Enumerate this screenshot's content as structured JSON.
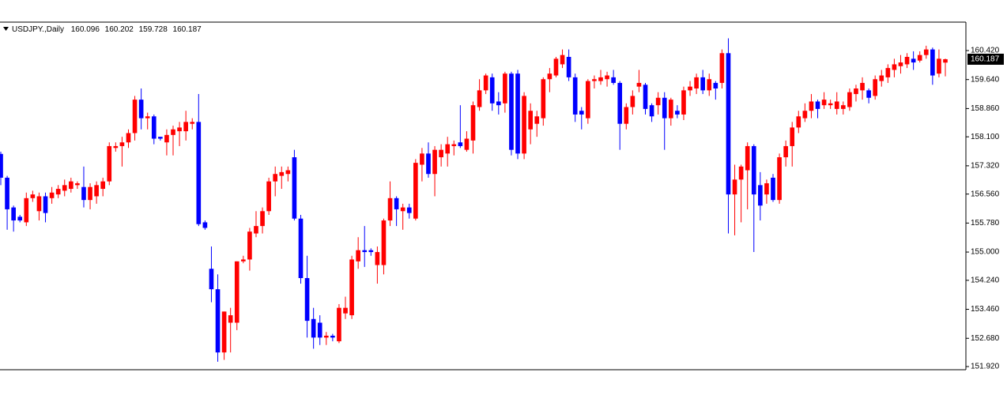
{
  "chart_data": {
    "type": "candlestick",
    "title": "USDJPY.,Daily",
    "up_color": "#ff0000",
    "down_color": "#0000ff",
    "ylim": [
      151.835,
      161.185
    ],
    "yticks": [
      {
        "value": 151.92,
        "label": "151.920"
      },
      {
        "value": 152.68,
        "label": "152.680"
      },
      {
        "value": 153.46,
        "label": "153.460"
      },
      {
        "value": 154.24,
        "label": "154.240"
      },
      {
        "value": 155.0,
        "label": "155.000"
      },
      {
        "value": 155.78,
        "label": "155.780"
      },
      {
        "value": 156.56,
        "label": "156.560"
      },
      {
        "value": 157.32,
        "label": "157.320"
      },
      {
        "value": 158.1,
        "label": "158.100"
      },
      {
        "value": 158.86,
        "label": "158.860"
      },
      {
        "value": 159.64,
        "label": "159.640"
      },
      {
        "value": 160.42,
        "label": "160.420"
      }
    ],
    "candles": [
      {
        "o": 157.64,
        "h": 157.7,
        "l": 156.8,
        "c": 157.0
      },
      {
        "o": 157.0,
        "h": 157.05,
        "l": 155.6,
        "c": 156.15
      },
      {
        "o": 156.2,
        "h": 156.25,
        "l": 155.55,
        "c": 155.85
      },
      {
        "o": 155.95,
        "h": 156.0,
        "l": 155.8,
        "c": 155.85
      },
      {
        "o": 155.8,
        "h": 156.6,
        "l": 155.7,
        "c": 156.45
      },
      {
        "o": 156.45,
        "h": 156.65,
        "l": 156.35,
        "c": 156.55
      },
      {
        "o": 156.1,
        "h": 156.6,
        "l": 155.85,
        "c": 156.5
      },
      {
        "o": 156.5,
        "h": 156.6,
        "l": 155.8,
        "c": 156.05
      },
      {
        "o": 156.45,
        "h": 156.75,
        "l": 156.3,
        "c": 156.6
      },
      {
        "o": 156.55,
        "h": 156.8,
        "l": 156.45,
        "c": 156.7
      },
      {
        "o": 156.65,
        "h": 156.95,
        "l": 156.5,
        "c": 156.8
      },
      {
        "o": 156.7,
        "h": 157.0,
        "l": 156.6,
        "c": 156.9
      },
      {
        "o": 156.8,
        "h": 156.9,
        "l": 156.7,
        "c": 156.85
      },
      {
        "o": 156.75,
        "h": 157.3,
        "l": 156.2,
        "c": 156.4
      },
      {
        "o": 156.4,
        "h": 156.85,
        "l": 156.15,
        "c": 156.75
      },
      {
        "o": 156.5,
        "h": 156.9,
        "l": 156.3,
        "c": 156.8
      },
      {
        "o": 156.7,
        "h": 157.0,
        "l": 156.5,
        "c": 156.9
      },
      {
        "o": 156.9,
        "h": 157.95,
        "l": 156.8,
        "c": 157.85
      },
      {
        "o": 157.8,
        "h": 157.95,
        "l": 157.7,
        "c": 157.85
      },
      {
        "o": 157.85,
        "h": 158.1,
        "l": 157.3,
        "c": 157.95
      },
      {
        "o": 157.95,
        "h": 158.3,
        "l": 157.8,
        "c": 158.2
      },
      {
        "o": 158.2,
        "h": 159.2,
        "l": 158.0,
        "c": 159.1
      },
      {
        "o": 159.1,
        "h": 159.4,
        "l": 158.3,
        "c": 158.6
      },
      {
        "o": 158.6,
        "h": 158.75,
        "l": 158.3,
        "c": 158.65
      },
      {
        "o": 158.65,
        "h": 158.7,
        "l": 157.9,
        "c": 158.05
      },
      {
        "o": 158.1,
        "h": 158.1,
        "l": 158.0,
        "c": 158.05
      },
      {
        "o": 157.95,
        "h": 158.3,
        "l": 157.6,
        "c": 158.15
      },
      {
        "o": 158.15,
        "h": 158.4,
        "l": 157.6,
        "c": 158.3
      },
      {
        "o": 158.25,
        "h": 158.5,
        "l": 157.85,
        "c": 158.35
      },
      {
        "o": 158.25,
        "h": 158.8,
        "l": 158.0,
        "c": 158.5
      },
      {
        "o": 158.45,
        "h": 158.6,
        "l": 158.3,
        "c": 158.5
      },
      {
        "o": 158.5,
        "h": 159.25,
        "l": 155.7,
        "c": 155.75
      },
      {
        "o": 155.8,
        "h": 155.85,
        "l": 155.6,
        "c": 155.65
      },
      {
        "o": 154.55,
        "h": 155.15,
        "l": 153.65,
        "c": 154.0
      },
      {
        "o": 154.0,
        "h": 154.4,
        "l": 152.05,
        "c": 152.3
      },
      {
        "o": 152.3,
        "h": 153.4,
        "l": 152.1,
        "c": 153.4
      },
      {
        "o": 153.1,
        "h": 153.5,
        "l": 152.3,
        "c": 153.3
      },
      {
        "o": 153.1,
        "h": 154.75,
        "l": 152.9,
        "c": 154.75
      },
      {
        "o": 154.75,
        "h": 154.9,
        "l": 154.7,
        "c": 154.8
      },
      {
        "o": 154.8,
        "h": 155.65,
        "l": 154.5,
        "c": 155.55
      },
      {
        "o": 155.5,
        "h": 156.1,
        "l": 155.4,
        "c": 155.7
      },
      {
        "o": 155.7,
        "h": 156.2,
        "l": 155.5,
        "c": 156.1
      },
      {
        "o": 156.1,
        "h": 157.0,
        "l": 156.0,
        "c": 156.9
      },
      {
        "o": 156.9,
        "h": 157.3,
        "l": 156.5,
        "c": 157.1
      },
      {
        "o": 157.05,
        "h": 157.3,
        "l": 156.7,
        "c": 157.15
      },
      {
        "o": 157.1,
        "h": 157.3,
        "l": 156.9,
        "c": 157.2
      },
      {
        "o": 157.55,
        "h": 157.75,
        "l": 155.85,
        "c": 155.9
      },
      {
        "o": 155.9,
        "h": 156.0,
        "l": 154.15,
        "c": 154.3
      },
      {
        "o": 154.3,
        "h": 154.9,
        "l": 152.7,
        "c": 153.15
      },
      {
        "o": 153.2,
        "h": 153.5,
        "l": 152.4,
        "c": 152.7
      },
      {
        "o": 153.1,
        "h": 153.3,
        "l": 152.5,
        "c": 152.7
      },
      {
        "o": 152.7,
        "h": 152.85,
        "l": 152.5,
        "c": 152.75
      },
      {
        "o": 152.75,
        "h": 152.8,
        "l": 152.6,
        "c": 152.7
      },
      {
        "o": 152.6,
        "h": 153.6,
        "l": 152.55,
        "c": 153.5
      },
      {
        "o": 153.35,
        "h": 153.8,
        "l": 153.2,
        "c": 153.5
      },
      {
        "o": 153.3,
        "h": 154.9,
        "l": 153.2,
        "c": 154.8
      },
      {
        "o": 154.75,
        "h": 155.4,
        "l": 154.55,
        "c": 155.05
      },
      {
        "o": 155.05,
        "h": 155.7,
        "l": 154.6,
        "c": 155.0
      },
      {
        "o": 155.05,
        "h": 155.1,
        "l": 154.9,
        "c": 155.0
      },
      {
        "o": 154.65,
        "h": 155.15,
        "l": 154.15,
        "c": 155.0
      },
      {
        "o": 154.65,
        "h": 155.9,
        "l": 154.4,
        "c": 155.85
      },
      {
        "o": 155.85,
        "h": 156.9,
        "l": 155.7,
        "c": 156.45
      },
      {
        "o": 156.45,
        "h": 156.5,
        "l": 155.7,
        "c": 156.15
      },
      {
        "o": 156.1,
        "h": 156.3,
        "l": 155.6,
        "c": 156.2
      },
      {
        "o": 156.2,
        "h": 156.3,
        "l": 155.9,
        "c": 156.05
      },
      {
        "o": 155.9,
        "h": 157.5,
        "l": 155.85,
        "c": 157.4
      },
      {
        "o": 157.35,
        "h": 157.8,
        "l": 156.9,
        "c": 157.65
      },
      {
        "o": 157.65,
        "h": 157.95,
        "l": 157.0,
        "c": 157.1
      },
      {
        "o": 157.1,
        "h": 157.85,
        "l": 156.5,
        "c": 157.75
      },
      {
        "o": 157.55,
        "h": 157.9,
        "l": 157.3,
        "c": 157.75
      },
      {
        "o": 157.65,
        "h": 158.1,
        "l": 157.3,
        "c": 157.9
      },
      {
        "o": 157.85,
        "h": 158.0,
        "l": 157.6,
        "c": 157.9
      },
      {
        "o": 157.95,
        "h": 158.95,
        "l": 157.8,
        "c": 157.85
      },
      {
        "o": 157.75,
        "h": 158.25,
        "l": 157.7,
        "c": 158.05
      },
      {
        "o": 158.0,
        "h": 159.05,
        "l": 157.65,
        "c": 158.95
      },
      {
        "o": 158.9,
        "h": 159.65,
        "l": 158.8,
        "c": 159.35
      },
      {
        "o": 159.35,
        "h": 159.8,
        "l": 159.25,
        "c": 159.75
      },
      {
        "o": 159.7,
        "h": 159.8,
        "l": 158.8,
        "c": 159.0
      },
      {
        "o": 159.05,
        "h": 159.3,
        "l": 158.7,
        "c": 158.95
      },
      {
        "o": 159.0,
        "h": 159.85,
        "l": 158.75,
        "c": 159.8
      },
      {
        "o": 159.8,
        "h": 159.85,
        "l": 157.6,
        "c": 157.75
      },
      {
        "o": 159.8,
        "h": 159.9,
        "l": 157.5,
        "c": 157.65
      },
      {
        "o": 157.65,
        "h": 159.3,
        "l": 157.5,
        "c": 159.2
      },
      {
        "o": 158.3,
        "h": 159.0,
        "l": 157.9,
        "c": 158.8
      },
      {
        "o": 158.45,
        "h": 158.8,
        "l": 158.1,
        "c": 158.65
      },
      {
        "o": 158.6,
        "h": 159.7,
        "l": 158.4,
        "c": 159.65
      },
      {
        "o": 159.65,
        "h": 159.95,
        "l": 159.3,
        "c": 159.8
      },
      {
        "o": 159.75,
        "h": 160.25,
        "l": 159.7,
        "c": 160.2
      },
      {
        "o": 160.05,
        "h": 160.45,
        "l": 159.95,
        "c": 160.3
      },
      {
        "o": 160.25,
        "h": 160.45,
        "l": 159.6,
        "c": 159.7
      },
      {
        "o": 159.7,
        "h": 159.8,
        "l": 158.5,
        "c": 158.7
      },
      {
        "o": 158.8,
        "h": 158.9,
        "l": 158.3,
        "c": 158.7
      },
      {
        "o": 158.6,
        "h": 159.65,
        "l": 158.45,
        "c": 159.6
      },
      {
        "o": 159.6,
        "h": 159.75,
        "l": 159.4,
        "c": 159.65
      },
      {
        "o": 159.6,
        "h": 159.9,
        "l": 159.5,
        "c": 159.7
      },
      {
        "o": 159.65,
        "h": 159.85,
        "l": 159.45,
        "c": 159.75
      },
      {
        "o": 159.7,
        "h": 159.9,
        "l": 159.5,
        "c": 159.55
      },
      {
        "o": 159.55,
        "h": 159.6,
        "l": 157.75,
        "c": 158.45
      },
      {
        "o": 158.45,
        "h": 159.0,
        "l": 158.3,
        "c": 158.9
      },
      {
        "o": 158.9,
        "h": 159.35,
        "l": 158.7,
        "c": 159.2
      },
      {
        "o": 159.45,
        "h": 159.9,
        "l": 159.3,
        "c": 159.55
      },
      {
        "o": 159.5,
        "h": 159.55,
        "l": 158.7,
        "c": 158.85
      },
      {
        "o": 158.95,
        "h": 159.0,
        "l": 158.5,
        "c": 158.65
      },
      {
        "o": 158.95,
        "h": 159.3,
        "l": 158.7,
        "c": 159.15
      },
      {
        "o": 159.15,
        "h": 159.3,
        "l": 157.75,
        "c": 158.6
      },
      {
        "o": 158.6,
        "h": 159.15,
        "l": 158.4,
        "c": 159.1
      },
      {
        "o": 158.8,
        "h": 158.95,
        "l": 158.6,
        "c": 158.7
      },
      {
        "o": 158.7,
        "h": 159.45,
        "l": 158.55,
        "c": 159.35
      },
      {
        "o": 159.35,
        "h": 159.6,
        "l": 159.2,
        "c": 159.45
      },
      {
        "o": 159.4,
        "h": 159.8,
        "l": 159.25,
        "c": 159.7
      },
      {
        "o": 159.7,
        "h": 159.9,
        "l": 159.25,
        "c": 159.35
      },
      {
        "o": 159.35,
        "h": 159.8,
        "l": 159.2,
        "c": 159.65
      },
      {
        "o": 159.55,
        "h": 159.6,
        "l": 159.1,
        "c": 159.4
      },
      {
        "o": 159.55,
        "h": 160.45,
        "l": 159.4,
        "c": 160.35
      },
      {
        "o": 160.35,
        "h": 160.75,
        "l": 155.5,
        "c": 156.55
      },
      {
        "o": 156.55,
        "h": 157.35,
        "l": 155.45,
        "c": 156.95
      },
      {
        "o": 156.95,
        "h": 157.35,
        "l": 155.8,
        "c": 157.3
      },
      {
        "o": 157.2,
        "h": 157.95,
        "l": 156.15,
        "c": 157.85
      },
      {
        "o": 157.85,
        "h": 157.9,
        "l": 155.0,
        "c": 156.55
      },
      {
        "o": 156.8,
        "h": 157.15,
        "l": 155.85,
        "c": 156.25
      },
      {
        "o": 156.55,
        "h": 156.95,
        "l": 156.3,
        "c": 156.85
      },
      {
        "o": 157.0,
        "h": 157.1,
        "l": 156.35,
        "c": 156.4
      },
      {
        "o": 156.4,
        "h": 157.65,
        "l": 156.3,
        "c": 157.55
      },
      {
        "o": 157.55,
        "h": 158.0,
        "l": 157.3,
        "c": 157.85
      },
      {
        "o": 157.85,
        "h": 158.5,
        "l": 157.3,
        "c": 158.35
      },
      {
        "o": 158.35,
        "h": 158.8,
        "l": 158.2,
        "c": 158.65
      },
      {
        "o": 158.6,
        "h": 159.0,
        "l": 158.5,
        "c": 158.8
      },
      {
        "o": 158.8,
        "h": 159.25,
        "l": 158.6,
        "c": 159.05
      },
      {
        "o": 159.05,
        "h": 159.1,
        "l": 158.6,
        "c": 158.85
      },
      {
        "o": 158.95,
        "h": 159.3,
        "l": 158.85,
        "c": 159.1
      },
      {
        "o": 158.95,
        "h": 159.1,
        "l": 158.85,
        "c": 159.0
      },
      {
        "o": 158.85,
        "h": 159.3,
        "l": 158.7,
        "c": 159.05
      },
      {
        "o": 158.85,
        "h": 159.05,
        "l": 158.7,
        "c": 158.95
      },
      {
        "o": 158.9,
        "h": 159.4,
        "l": 158.8,
        "c": 159.3
      },
      {
        "o": 159.25,
        "h": 159.5,
        "l": 159.05,
        "c": 159.4
      },
      {
        "o": 159.35,
        "h": 159.7,
        "l": 159.1,
        "c": 159.55
      },
      {
        "o": 159.35,
        "h": 159.4,
        "l": 159.0,
        "c": 159.15
      },
      {
        "o": 159.2,
        "h": 159.75,
        "l": 159.1,
        "c": 159.65
      },
      {
        "o": 159.6,
        "h": 159.9,
        "l": 159.45,
        "c": 159.75
      },
      {
        "o": 159.7,
        "h": 160.05,
        "l": 159.55,
        "c": 159.95
      },
      {
        "o": 159.9,
        "h": 160.2,
        "l": 159.7,
        "c": 160.05
      },
      {
        "o": 160.0,
        "h": 160.3,
        "l": 159.8,
        "c": 160.1
      },
      {
        "o": 160.05,
        "h": 160.35,
        "l": 159.95,
        "c": 160.25
      },
      {
        "o": 160.2,
        "h": 160.4,
        "l": 159.9,
        "c": 160.1
      },
      {
        "o": 160.15,
        "h": 160.4,
        "l": 160.1,
        "c": 160.3
      },
      {
        "o": 160.3,
        "h": 160.55,
        "l": 160.2,
        "c": 160.45
      },
      {
        "o": 160.45,
        "h": 160.5,
        "l": 159.5,
        "c": 159.75
      },
      {
        "o": 159.8,
        "h": 160.45,
        "l": 159.7,
        "c": 160.2
      },
      {
        "o": 160.096,
        "h": 160.202,
        "l": 159.728,
        "c": 160.187
      }
    ]
  }
}
